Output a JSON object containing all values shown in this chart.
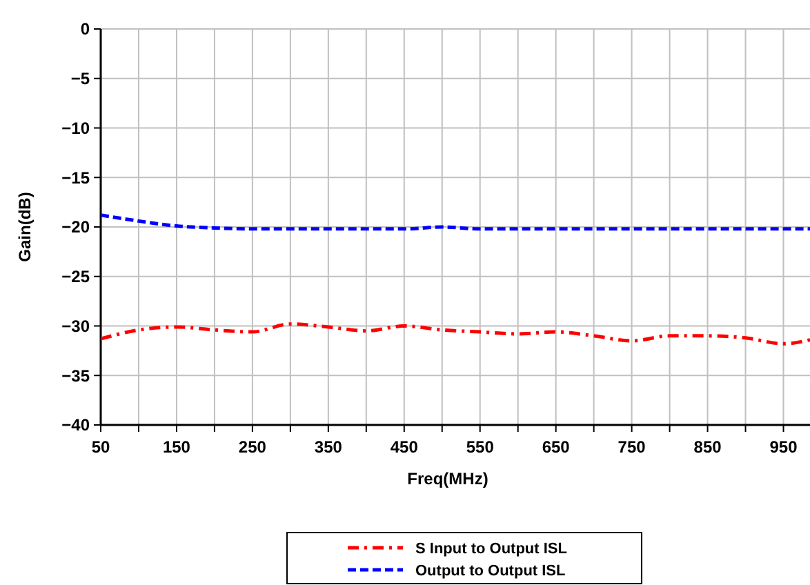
{
  "chart_data": {
    "type": "line",
    "xlabel": "Freq(MHz)",
    "ylabel": "Gain(dB)",
    "x": [
      50,
      100,
      150,
      200,
      250,
      300,
      350,
      400,
      450,
      500,
      550,
      600,
      650,
      700,
      750,
      800,
      850,
      900,
      950,
      985
    ],
    "series": [
      {
        "name": "S Input to Output ISL",
        "color": "#ff0000",
        "line_style": "dashdot",
        "values": [
          -31.3,
          -30.4,
          -30.1,
          -30.4,
          -30.6,
          -29.8,
          -30.1,
          -30.5,
          -30.0,
          -30.4,
          -30.6,
          -30.8,
          -30.6,
          -31.0,
          -31.5,
          -31.0,
          -31.0,
          -31.2,
          -31.8,
          -31.4
        ]
      },
      {
        "name": "Output to Output ISL",
        "color": "#0000ff",
        "line_style": "dashed",
        "values": [
          -18.8,
          -19.4,
          -19.9,
          -20.1,
          -20.2,
          -20.2,
          -20.2,
          -20.2,
          -20.2,
          -20.0,
          -20.2,
          -20.2,
          -20.2,
          -20.2,
          -20.2,
          -20.2,
          -20.2,
          -20.2,
          -20.2,
          -20.2
        ]
      }
    ],
    "xlim": [
      50,
      985
    ],
    "xticks": [
      50,
      {
        "value": 100,
        "label": null
      },
      150,
      {
        "value": 200,
        "label": null
      },
      250,
      {
        "value": 300,
        "label": null
      },
      350,
      {
        "value": 400,
        "label": null
      },
      450,
      {
        "value": 500,
        "label": null
      },
      550,
      {
        "value": 600,
        "label": null
      },
      650,
      {
        "value": 700,
        "label": null
      },
      750,
      {
        "value": 800,
        "label": null
      },
      850,
      {
        "value": 900,
        "label": null
      },
      950
    ],
    "ylim": [
      -40,
      0
    ],
    "yticks": [
      -40,
      -35,
      -30,
      -25,
      -20,
      -15,
      -10,
      -5,
      0
    ],
    "grid": true,
    "legend": "bottom",
    "marker": "none"
  }
}
